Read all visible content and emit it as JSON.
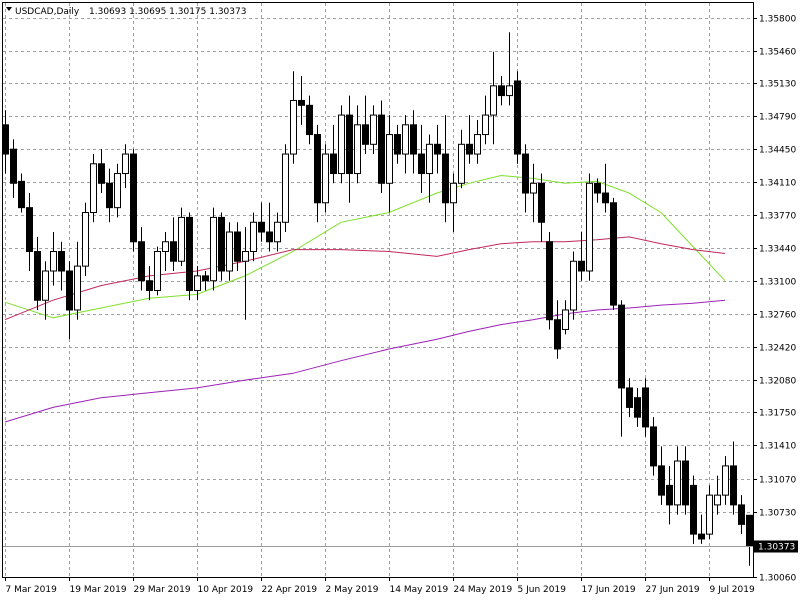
{
  "header": {
    "symbol": "USDCAD,Daily",
    "ohlc": "1.30693 1.30695 1.30175 1.30373"
  },
  "chart_data": {
    "type": "candlestick",
    "title": "USDCAD,Daily",
    "ylim": [
      1.3006,
      1.3595
    ],
    "y_ticks": [
      "1.35800",
      "1.35460",
      "1.35130",
      "1.34790",
      "1.34450",
      "1.34110",
      "1.33770",
      "1.33440",
      "1.33100",
      "1.32760",
      "1.32420",
      "1.32080",
      "1.31750",
      "1.31410",
      "1.31070",
      "1.30730",
      "1.30060"
    ],
    "x_labels": [
      {
        "i": 0,
        "label": "7 Mar 2019"
      },
      {
        "i": 8,
        "label": "19 Mar 2019"
      },
      {
        "i": 16,
        "label": "29 Mar 2019"
      },
      {
        "i": 24,
        "label": "10 Apr 2019"
      },
      {
        "i": 32,
        "label": "22 Apr 2019"
      },
      {
        "i": 40,
        "label": "2 May 2019"
      },
      {
        "i": 48,
        "label": "14 May 2019"
      },
      {
        "i": 56,
        "label": "24 May 2019"
      },
      {
        "i": 64,
        "label": "5 Jun 2019"
      },
      {
        "i": 72,
        "label": "17 Jun 2019"
      },
      {
        "i": 80,
        "label": "27 Jun 2019"
      },
      {
        "i": 88,
        "label": "9 Jul 2019"
      }
    ],
    "current_price": "1.30373",
    "grid": true,
    "candles": [
      {
        "o": 1.347,
        "h": 1.3485,
        "l": 1.342,
        "c": 1.344
      },
      {
        "o": 1.3445,
        "h": 1.3455,
        "l": 1.3395,
        "c": 1.341
      },
      {
        "o": 1.3412,
        "h": 1.342,
        "l": 1.338,
        "c": 1.3385
      },
      {
        "o": 1.3385,
        "h": 1.34,
        "l": 1.332,
        "c": 1.334
      },
      {
        "o": 1.334,
        "h": 1.3355,
        "l": 1.328,
        "c": 1.329
      },
      {
        "o": 1.329,
        "h": 1.333,
        "l": 1.327,
        "c": 1.332
      },
      {
        "o": 1.332,
        "h": 1.336,
        "l": 1.3305,
        "c": 1.334
      },
      {
        "o": 1.334,
        "h": 1.335,
        "l": 1.33,
        "c": 1.332
      },
      {
        "o": 1.332,
        "h": 1.333,
        "l": 1.325,
        "c": 1.328
      },
      {
        "o": 1.328,
        "h": 1.335,
        "l": 1.327,
        "c": 1.3325
      },
      {
        "o": 1.3325,
        "h": 1.339,
        "l": 1.3315,
        "c": 1.338
      },
      {
        "o": 1.338,
        "h": 1.344,
        "l": 1.337,
        "c": 1.343
      },
      {
        "o": 1.343,
        "h": 1.3445,
        "l": 1.34,
        "c": 1.341
      },
      {
        "o": 1.341,
        "h": 1.3425,
        "l": 1.337,
        "c": 1.3385
      },
      {
        "o": 1.3385,
        "h": 1.343,
        "l": 1.3375,
        "c": 1.342
      },
      {
        "o": 1.342,
        "h": 1.345,
        "l": 1.3405,
        "c": 1.344
      },
      {
        "o": 1.344,
        "h": 1.3445,
        "l": 1.334,
        "c": 1.335
      },
      {
        "o": 1.335,
        "h": 1.3365,
        "l": 1.33,
        "c": 1.331
      },
      {
        "o": 1.331,
        "h": 1.3325,
        "l": 1.329,
        "c": 1.33
      },
      {
        "o": 1.33,
        "h": 1.3345,
        "l": 1.3295,
        "c": 1.334
      },
      {
        "o": 1.334,
        "h": 1.336,
        "l": 1.332,
        "c": 1.335
      },
      {
        "o": 1.335,
        "h": 1.3375,
        "l": 1.332,
        "c": 1.333
      },
      {
        "o": 1.333,
        "h": 1.3385,
        "l": 1.3325,
        "c": 1.3375
      },
      {
        "o": 1.3375,
        "h": 1.338,
        "l": 1.329,
        "c": 1.33
      },
      {
        "o": 1.33,
        "h": 1.3325,
        "l": 1.329,
        "c": 1.3315
      },
      {
        "o": 1.3315,
        "h": 1.332,
        "l": 1.33,
        "c": 1.331
      },
      {
        "o": 1.331,
        "h": 1.3385,
        "l": 1.33,
        "c": 1.3375
      },
      {
        "o": 1.3375,
        "h": 1.338,
        "l": 1.331,
        "c": 1.332
      },
      {
        "o": 1.332,
        "h": 1.337,
        "l": 1.331,
        "c": 1.336
      },
      {
        "o": 1.336,
        "h": 1.337,
        "l": 1.332,
        "c": 1.333
      },
      {
        "o": 1.333,
        "h": 1.3365,
        "l": 1.327,
        "c": 1.334
      },
      {
        "o": 1.334,
        "h": 1.338,
        "l": 1.333,
        "c": 1.337
      },
      {
        "o": 1.337,
        "h": 1.339,
        "l": 1.335,
        "c": 1.336
      },
      {
        "o": 1.336,
        "h": 1.339,
        "l": 1.334,
        "c": 1.335
      },
      {
        "o": 1.335,
        "h": 1.338,
        "l": 1.334,
        "c": 1.337
      },
      {
        "o": 1.337,
        "h": 1.345,
        "l": 1.336,
        "c": 1.344
      },
      {
        "o": 1.344,
        "h": 1.3525,
        "l": 1.343,
        "c": 1.3495
      },
      {
        "o": 1.3495,
        "h": 1.352,
        "l": 1.347,
        "c": 1.349
      },
      {
        "o": 1.349,
        "h": 1.35,
        "l": 1.345,
        "c": 1.346
      },
      {
        "o": 1.346,
        "h": 1.347,
        "l": 1.337,
        "c": 1.339
      },
      {
        "o": 1.339,
        "h": 1.345,
        "l": 1.338,
        "c": 1.344
      },
      {
        "o": 1.344,
        "h": 1.347,
        "l": 1.341,
        "c": 1.342
      },
      {
        "o": 1.342,
        "h": 1.349,
        "l": 1.341,
        "c": 1.348
      },
      {
        "o": 1.348,
        "h": 1.35,
        "l": 1.339,
        "c": 1.342
      },
      {
        "o": 1.342,
        "h": 1.349,
        "l": 1.341,
        "c": 1.347
      },
      {
        "o": 1.347,
        "h": 1.35,
        "l": 1.344,
        "c": 1.345
      },
      {
        "o": 1.345,
        "h": 1.349,
        "l": 1.344,
        "c": 1.348
      },
      {
        "o": 1.348,
        "h": 1.3495,
        "l": 1.34,
        "c": 1.341
      },
      {
        "o": 1.341,
        "h": 1.348,
        "l": 1.338,
        "c": 1.346
      },
      {
        "o": 1.346,
        "h": 1.347,
        "l": 1.343,
        "c": 1.344
      },
      {
        "o": 1.344,
        "h": 1.348,
        "l": 1.342,
        "c": 1.347
      },
      {
        "o": 1.347,
        "h": 1.3485,
        "l": 1.342,
        "c": 1.344
      },
      {
        "o": 1.344,
        "h": 1.347,
        "l": 1.34,
        "c": 1.342
      },
      {
        "o": 1.342,
        "h": 1.346,
        "l": 1.339,
        "c": 1.345
      },
      {
        "o": 1.345,
        "h": 1.347,
        "l": 1.342,
        "c": 1.344
      },
      {
        "o": 1.344,
        "h": 1.348,
        "l": 1.337,
        "c": 1.339
      },
      {
        "o": 1.339,
        "h": 1.342,
        "l": 1.336,
        "c": 1.341
      },
      {
        "o": 1.341,
        "h": 1.3465,
        "l": 1.3405,
        "c": 1.345
      },
      {
        "o": 1.345,
        "h": 1.348,
        "l": 1.343,
        "c": 1.344
      },
      {
        "o": 1.344,
        "h": 1.3475,
        "l": 1.343,
        "c": 1.346
      },
      {
        "o": 1.346,
        "h": 1.35,
        "l": 1.345,
        "c": 1.348
      },
      {
        "o": 1.348,
        "h": 1.3545,
        "l": 1.345,
        "c": 1.351
      },
      {
        "o": 1.351,
        "h": 1.352,
        "l": 1.349,
        "c": 1.35
      },
      {
        "o": 1.35,
        "h": 1.3565,
        "l": 1.349,
        "c": 1.351
      },
      {
        "o": 1.3515,
        "h": 1.3525,
        "l": 1.343,
        "c": 1.344
      },
      {
        "o": 1.344,
        "h": 1.345,
        "l": 1.338,
        "c": 1.34
      },
      {
        "o": 1.34,
        "h": 1.343,
        "l": 1.337,
        "c": 1.341
      },
      {
        "o": 1.341,
        "h": 1.342,
        "l": 1.335,
        "c": 1.337
      },
      {
        "o": 1.335,
        "h": 1.336,
        "l": 1.326,
        "c": 1.327
      },
      {
        "o": 1.327,
        "h": 1.329,
        "l": 1.323,
        "c": 1.324
      },
      {
        "o": 1.326,
        "h": 1.329,
        "l": 1.3255,
        "c": 1.328
      },
      {
        "o": 1.328,
        "h": 1.334,
        "l": 1.327,
        "c": 1.333
      },
      {
        "o": 1.333,
        "h": 1.336,
        "l": 1.331,
        "c": 1.332
      },
      {
        "o": 1.332,
        "h": 1.342,
        "l": 1.331,
        "c": 1.341
      },
      {
        "o": 1.341,
        "h": 1.3415,
        "l": 1.339,
        "c": 1.34
      },
      {
        "o": 1.34,
        "h": 1.343,
        "l": 1.338,
        "c": 1.339
      },
      {
        "o": 1.339,
        "h": 1.3395,
        "l": 1.328,
        "c": 1.3285
      },
      {
        "o": 1.3285,
        "h": 1.329,
        "l": 1.315,
        "c": 1.32
      },
      {
        "o": 1.32,
        "h": 1.321,
        "l": 1.317,
        "c": 1.318
      },
      {
        "o": 1.319,
        "h": 1.32,
        "l": 1.316,
        "c": 1.317
      },
      {
        "o": 1.32,
        "h": 1.321,
        "l": 1.315,
        "c": 1.316
      },
      {
        "o": 1.316,
        "h": 1.317,
        "l": 1.311,
        "c": 1.312
      },
      {
        "o": 1.312,
        "h": 1.314,
        "l": 1.308,
        "c": 1.309
      },
      {
        "o": 1.31,
        "h": 1.312,
        "l": 1.306,
        "c": 1.308
      },
      {
        "o": 1.308,
        "h": 1.314,
        "l": 1.307,
        "c": 1.3125
      },
      {
        "o": 1.3125,
        "h": 1.314,
        "l": 1.307,
        "c": 1.308
      },
      {
        "o": 1.31,
        "h": 1.311,
        "l": 1.304,
        "c": 1.305
      },
      {
        "o": 1.305,
        "h": 1.307,
        "l": 1.304,
        "c": 1.3045
      },
      {
        "o": 1.305,
        "h": 1.31,
        "l": 1.3045,
        "c": 1.309
      },
      {
        "o": 1.308,
        "h": 1.311,
        "l": 1.307,
        "c": 1.309
      },
      {
        "o": 1.309,
        "h": 1.313,
        "l": 1.308,
        "c": 1.312
      },
      {
        "o": 1.312,
        "h": 1.3145,
        "l": 1.307,
        "c": 1.308
      },
      {
        "o": 1.308,
        "h": 1.309,
        "l": 1.305,
        "c": 1.306
      },
      {
        "o": 1.30693,
        "h": 1.30695,
        "l": 1.30175,
        "c": 1.30373
      }
    ],
    "series": [
      {
        "color": "#7fe02a",
        "values": [
          [
            0,
            1.3288
          ],
          [
            6,
            1.3272
          ],
          [
            12,
            1.3282
          ],
          [
            18,
            1.3292
          ],
          [
            24,
            1.3296
          ],
          [
            30,
            1.3315
          ],
          [
            36,
            1.334
          ],
          [
            42,
            1.337
          ],
          [
            48,
            1.338
          ],
          [
            54,
            1.34
          ],
          [
            58,
            1.341
          ],
          [
            62,
            1.3418
          ],
          [
            66,
            1.3415
          ],
          [
            70,
            1.341
          ],
          [
            74,
            1.3412
          ],
          [
            78,
            1.34
          ],
          [
            82,
            1.338
          ],
          [
            86,
            1.3345
          ],
          [
            90,
            1.331
          ]
        ]
      },
      {
        "color": "#c0285a",
        "values": [
          [
            0,
            1.327
          ],
          [
            6,
            1.329
          ],
          [
            12,
            1.3305
          ],
          [
            18,
            1.3315
          ],
          [
            24,
            1.332
          ],
          [
            30,
            1.333
          ],
          [
            36,
            1.3342
          ],
          [
            42,
            1.3342
          ],
          [
            48,
            1.334
          ],
          [
            54,
            1.3335
          ],
          [
            58,
            1.3342
          ],
          [
            62,
            1.3348
          ],
          [
            66,
            1.335
          ],
          [
            70,
            1.335
          ],
          [
            74,
            1.3352
          ],
          [
            78,
            1.3355
          ],
          [
            82,
            1.3348
          ],
          [
            86,
            1.3342
          ],
          [
            90,
            1.3338
          ]
        ]
      },
      {
        "color": "#9d21b8",
        "values": [
          [
            0,
            1.3165
          ],
          [
            6,
            1.318
          ],
          [
            12,
            1.319
          ],
          [
            18,
            1.3195
          ],
          [
            24,
            1.32
          ],
          [
            30,
            1.3208
          ],
          [
            36,
            1.3215
          ],
          [
            42,
            1.3228
          ],
          [
            48,
            1.324
          ],
          [
            54,
            1.325
          ],
          [
            58,
            1.3258
          ],
          [
            62,
            1.3265
          ],
          [
            66,
            1.327
          ],
          [
            70,
            1.3276
          ],
          [
            74,
            1.328
          ],
          [
            78,
            1.3282
          ],
          [
            82,
            1.3285
          ],
          [
            86,
            1.3287
          ],
          [
            90,
            1.329
          ]
        ]
      }
    ]
  }
}
